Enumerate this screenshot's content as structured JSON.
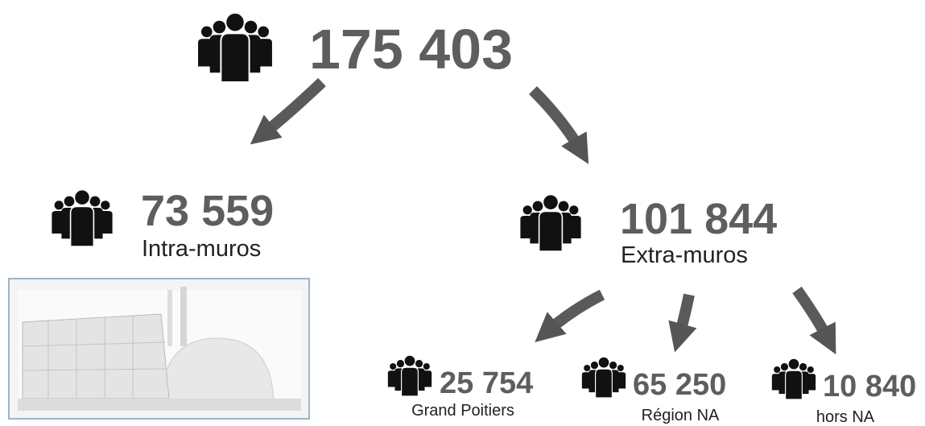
{
  "total": {
    "value": "175 403"
  },
  "intra": {
    "value": "73 559",
    "label": "Intra-muros"
  },
  "extra": {
    "value": "101 844",
    "label": "Extra-muros"
  },
  "extra_breakdown": [
    {
      "value": "25 754",
      "label": "Grand Poitiers"
    },
    {
      "value": "65 250",
      "label": "Région NA"
    },
    {
      "value": "10 840",
      "label": "hors NA"
    }
  ]
}
